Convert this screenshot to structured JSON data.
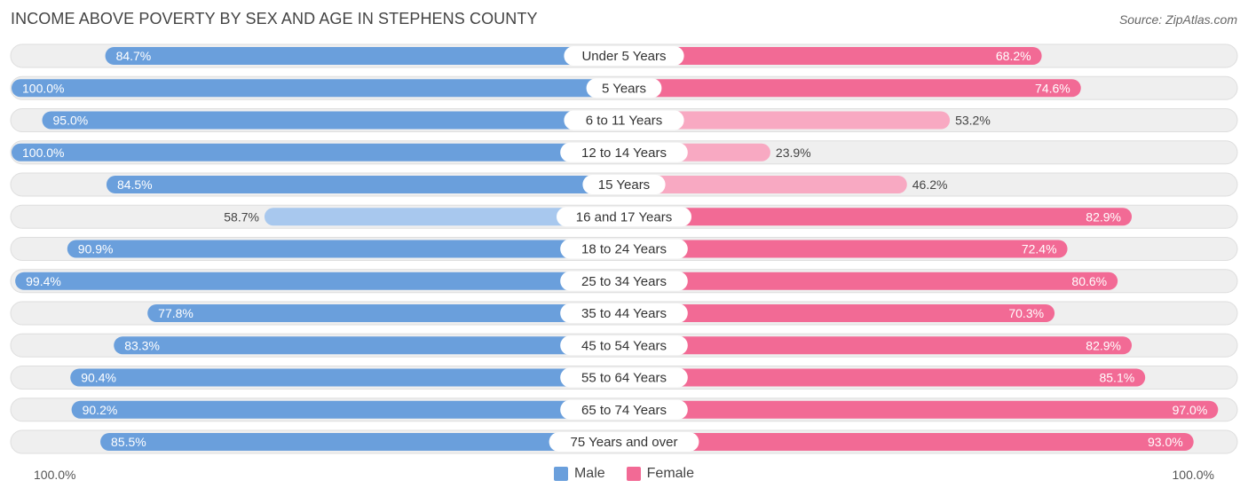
{
  "header": {
    "title": "INCOME ABOVE POVERTY BY SEX AND AGE IN STEPHENS COUNTY",
    "source": "Source: ZipAtlas.com"
  },
  "axis": {
    "left_label": "100.0%",
    "right_label": "100.0%"
  },
  "legend": {
    "male_label": "Male",
    "female_label": "Female"
  },
  "colors": {
    "male_strong": "#6a9fdc",
    "male_light": "#a8c8ee",
    "female_strong": "#f26a95",
    "female_light": "#f8a9c2",
    "row_bg": "#efefef"
  },
  "chart_data": {
    "type": "bar",
    "orientation": "horizontal-diverging",
    "title": "INCOME ABOVE POVERTY BY SEX AND AGE IN STEPHENS COUNTY",
    "xlim": [
      0,
      100
    ],
    "unit": "%",
    "categories": [
      "Under 5 Years",
      "5 Years",
      "6 to 11 Years",
      "12 to 14 Years",
      "15 Years",
      "16 and 17 Years",
      "18 to 24 Years",
      "25 to 34 Years",
      "35 to 44 Years",
      "45 to 54 Years",
      "55 to 64 Years",
      "65 to 74 Years",
      "75 Years and over"
    ],
    "series": [
      {
        "name": "Male",
        "values": [
          84.7,
          100.0,
          95.0,
          100.0,
          84.5,
          58.7,
          90.9,
          99.4,
          77.8,
          83.3,
          90.4,
          90.2,
          85.5
        ],
        "labels": [
          "84.7%",
          "100.0%",
          "95.0%",
          "100.0%",
          "84.5%",
          "58.7%",
          "90.9%",
          "99.4%",
          "77.8%",
          "83.3%",
          "90.4%",
          "90.2%",
          "85.5%"
        ]
      },
      {
        "name": "Female",
        "values": [
          68.2,
          74.6,
          53.2,
          23.9,
          46.2,
          82.9,
          72.4,
          80.6,
          70.3,
          82.9,
          85.1,
          97.0,
          93.0
        ],
        "labels": [
          "68.2%",
          "74.6%",
          "53.2%",
          "23.9%",
          "46.2%",
          "82.9%",
          "72.4%",
          "80.6%",
          "70.3%",
          "82.9%",
          "85.1%",
          "97.0%",
          "93.0%"
        ]
      }
    ]
  }
}
